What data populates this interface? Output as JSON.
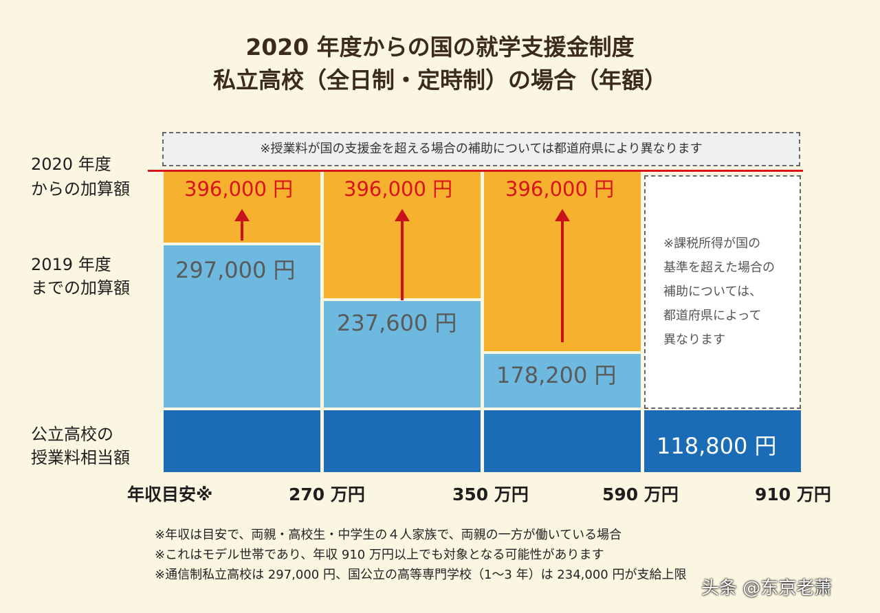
{
  "header": {
    "title": [
      "2020 年度からの国の就学支援金制度",
      "私立高校（全日制・定時制）の場合（年額）"
    ]
  },
  "note_top": "※授業料が国の支援金を超える場合の補助については都道府県により異なります",
  "row_labels": {
    "addition_2020": [
      "2020 年度",
      "からの加算額"
    ],
    "addition_2019": [
      "2019 年度",
      "までの加算額"
    ],
    "public_tuition": [
      "公立高校の",
      "授業料相当額"
    ]
  },
  "columns": [
    {
      "addition_2020": "396,000 円",
      "addition_2019": "297,000 円"
    },
    {
      "addition_2020": "396,000 円",
      "addition_2019": "237,600 円"
    },
    {
      "addition_2020": "396,000 円",
      "addition_2019": "178,200 円"
    },
    {
      "note": [
        "※課税所得が国の",
        "基準を超えた場合の",
        "補助については、",
        "都道府県によって",
        "異なります"
      ],
      "public_tuition": "118,800 円"
    }
  ],
  "income_labels": [
    "年収目安※",
    "270 万円",
    "350 万円",
    "590 万円",
    "910 万円"
  ],
  "footnotes": [
    "※年収は目安で、両親・高校生・中学生の４人家族で、両親の一方が働いている場合",
    "※これはモデル世帯であり、年収 910 万円以上でも対象となる可能性があります",
    "※通信制私立高校は 297,000 円、国公立の高等専門学校（1〜3 年）は 234,000 円が支給上限"
  ],
  "watermark": "头条 @东京老萧"
}
